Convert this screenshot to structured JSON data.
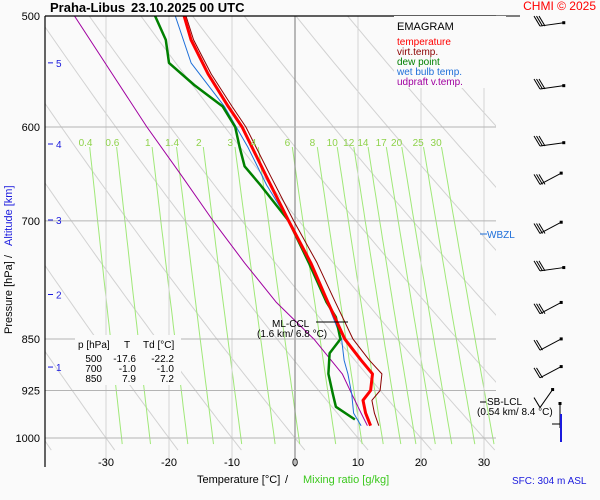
{
  "header": {
    "station": "Praha-Libus",
    "datetime": "23.10.2025 00 UTC",
    "copyright": "CHMI © 2025"
  },
  "legend": {
    "title": "EMAGRAM",
    "items": [
      {
        "label": "temperature",
        "color": "#ff0000"
      },
      {
        "label": "virt.temp.",
        "color": "#8b0000"
      },
      {
        "label": "dew point",
        "color": "#008000"
      },
      {
        "label": "wet bulb temp.",
        "color": "#1e6fd9"
      },
      {
        "label": "udpraft v.temp.",
        "color": "#a000a0"
      }
    ]
  },
  "table": {
    "headers": [
      "p [hPa]",
      "T",
      "Td [°C]"
    ],
    "rows": [
      [
        "500",
        "-17.6",
        "-22.2"
      ],
      [
        "700",
        "-1.0",
        "-1.0"
      ],
      [
        "850",
        "7.9",
        "7.2"
      ]
    ]
  },
  "annotations": {
    "ml_ccl": {
      "label": "ML-CCL",
      "detail": "(1.6 km/ 6.8 °C)"
    },
    "sb_lcl": {
      "label": "SB-LCL",
      "detail": "(0.54 km/ 8.4 °C)"
    },
    "wbzl": {
      "label": "WBZL"
    },
    "sfc": "SFC: 304 m ASL"
  },
  "chart_data": {
    "type": "line",
    "title": "Praha-Libus 23.10.2025 00 UTC",
    "xlabel": "Temperature [°C]",
    "xlabel2": "Mixing ratio [g/kg]",
    "ylabel": "Pressure [hPa]",
    "ylabel2": "Altitude [km]",
    "xlim": [
      -40,
      34
    ],
    "ylim": [
      1000,
      500
    ],
    "x_ticks": [
      -30,
      -20,
      -10,
      0,
      10,
      20,
      30
    ],
    "p_ticks": [
      500,
      600,
      700,
      850,
      925,
      1000
    ],
    "alt_ticks": [
      {
        "km": 5,
        "p": 540
      },
      {
        "km": 4,
        "p": 617
      },
      {
        "km": 3,
        "p": 699
      },
      {
        "km": 2,
        "p": 790
      },
      {
        "km": 1,
        "p": 890
      }
    ],
    "mixing_ratio_labels": [
      "0.4",
      "0.6",
      "1",
      "1.4",
      "2",
      "3",
      "4",
      "6",
      "8",
      "10",
      "12",
      "14",
      "17",
      "20",
      "25",
      "30"
    ],
    "series": [
      {
        "name": "temperature",
        "color": "#ff0000",
        "points": [
          [
            500,
            -17.6
          ],
          [
            520,
            -16.5
          ],
          [
            550,
            -13.8
          ],
          [
            580,
            -10.6
          ],
          [
            600,
            -8.4
          ],
          [
            650,
            -4.6
          ],
          [
            700,
            -1.0
          ],
          [
            750,
            2.5
          ],
          [
            800,
            5.2
          ],
          [
            850,
            7.9
          ],
          [
            880,
            10.5
          ],
          [
            900,
            12.3
          ],
          [
            925,
            12.0
          ],
          [
            940,
            10.8
          ],
          [
            960,
            11.2
          ],
          [
            980,
            12.0
          ]
        ]
      },
      {
        "name": "virt.temp.",
        "color": "#8b0000",
        "points": [
          [
            500,
            -17.3
          ],
          [
            520,
            -16.1
          ],
          [
            550,
            -13.3
          ],
          [
            580,
            -10.0
          ],
          [
            600,
            -7.8
          ],
          [
            650,
            -3.9
          ],
          [
            700,
            -0.2
          ],
          [
            750,
            3.5
          ],
          [
            800,
            6.4
          ],
          [
            850,
            9.2
          ],
          [
            880,
            11.8
          ],
          [
            900,
            13.8
          ],
          [
            925,
            13.5
          ],
          [
            940,
            12.2
          ],
          [
            960,
            12.6
          ],
          [
            980,
            13.3
          ]
        ]
      },
      {
        "name": "dew point",
        "color": "#008000",
        "points": [
          [
            500,
            -22.2
          ],
          [
            520,
            -20.5
          ],
          [
            540,
            -20.0
          ],
          [
            560,
            -16.0
          ],
          [
            580,
            -11.5
          ],
          [
            600,
            -9.5
          ],
          [
            620,
            -8.8
          ],
          [
            640,
            -8.0
          ],
          [
            660,
            -5.5
          ],
          [
            700,
            -1.0
          ],
          [
            750,
            2.2
          ],
          [
            800,
            5.0
          ],
          [
            820,
            6.5
          ],
          [
            850,
            7.2
          ],
          [
            870,
            5.5
          ],
          [
            900,
            5.3
          ],
          [
            930,
            6.0
          ],
          [
            950,
            6.5
          ],
          [
            970,
            9.5
          ]
        ]
      },
      {
        "name": "wet bulb temp.",
        "color": "#1e6fd9",
        "points": [
          [
            500,
            -19.0
          ],
          [
            540,
            -16.5
          ],
          [
            580,
            -11.2
          ],
          [
            620,
            -7.5
          ],
          [
            660,
            -4.5
          ],
          [
            700,
            -1.0
          ],
          [
            750,
            2.3
          ],
          [
            800,
            5.1
          ],
          [
            850,
            7.4
          ],
          [
            880,
            7.8
          ],
          [
            900,
            8.4
          ],
          [
            930,
            9.0
          ],
          [
            960,
            9.3
          ],
          [
            980,
            10.5
          ]
        ]
      },
      {
        "name": "udpraft v.temp.",
        "color": "#a000a0",
        "points": [
          [
            500,
            -35.0
          ],
          [
            550,
            -29.0
          ],
          [
            600,
            -23.5
          ],
          [
            650,
            -18.0
          ],
          [
            700,
            -13.0
          ],
          [
            750,
            -8.0
          ],
          [
            800,
            -3.0
          ],
          [
            850,
            3.0
          ],
          [
            900,
            7.5
          ],
          [
            930,
            9.0
          ],
          [
            960,
            10.5
          ],
          [
            980,
            11.5
          ]
        ]
      }
    ],
    "wind_barbs_p": [
      505,
      560,
      615,
      655,
      710,
      755,
      810,
      860,
      900,
      945,
      990
    ]
  },
  "colors": {
    "grid": "#b4b4b4",
    "dry_adiabat": "#d2d2d2",
    "mixing_ratio": "#a0e878",
    "mixing_label": "#8ed24a",
    "altitude": "#1a1add",
    "brand": "#ff0000"
  }
}
